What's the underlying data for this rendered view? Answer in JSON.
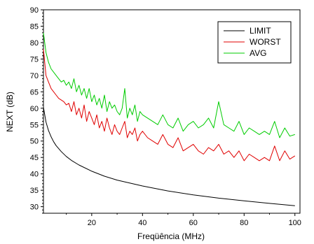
{
  "chart_data": {
    "type": "line",
    "title": "",
    "xlabel": "Freqüência (MHz)",
    "ylabel": "NEXT (dB)",
    "xlim": [
      1,
      102
    ],
    "ylim": [
      28,
      90
    ],
    "x_ticks": [
      20,
      40,
      60,
      80,
      100
    ],
    "y_ticks": [
      30,
      35,
      40,
      45,
      50,
      55,
      60,
      65,
      70,
      75,
      80,
      85,
      90
    ],
    "legend_position": "top-right",
    "grid": false,
    "series": [
      {
        "name": "LIMIT",
        "color": "#000000",
        "x": [
          1,
          2,
          3,
          4,
          5,
          6,
          8,
          10,
          12,
          15,
          20,
          25,
          30,
          40,
          50,
          60,
          70,
          80,
          90,
          100
        ],
        "values": [
          60.3,
          55.8,
          53.2,
          51.3,
          49.8,
          48.6,
          46.8,
          45.3,
          44.1,
          42.7,
          40.8,
          39.3,
          38.1,
          36.3,
          34.8,
          33.6,
          32.6,
          31.8,
          31.0,
          30.3
        ]
      },
      {
        "name": "WORST",
        "color": "#e00000",
        "x": [
          1,
          2,
          3,
          4,
          5,
          6,
          7,
          8,
          9,
          10,
          11,
          12,
          13,
          14,
          15,
          16,
          17,
          18,
          19,
          20,
          21,
          22,
          23,
          24,
          25,
          26,
          27,
          28,
          29,
          30,
          31,
          32,
          33,
          34,
          35,
          36,
          37,
          38,
          39,
          40,
          42,
          44,
          46,
          48,
          50,
          52,
          54,
          56,
          58,
          60,
          62,
          64,
          66,
          68,
          70,
          72,
          74,
          76,
          78,
          80,
          82,
          84,
          86,
          88,
          90,
          92,
          94,
          96,
          98,
          100
        ],
        "values": [
          78,
          70,
          68,
          66,
          65,
          64,
          63,
          62.5,
          62,
          61,
          61.5,
          59,
          62,
          58,
          60,
          57,
          61,
          56,
          59,
          57,
          55,
          58,
          54,
          56,
          53,
          57,
          54,
          52,
          55,
          53,
          52,
          54,
          56,
          51,
          53,
          52,
          54,
          50,
          52,
          53,
          51,
          50,
          49,
          52,
          49,
          48,
          51,
          47,
          48,
          49,
          47,
          46,
          48,
          47,
          49,
          46,
          47,
          45,
          47,
          44,
          46,
          45,
          44,
          45,
          44,
          48.5,
          44,
          47,
          44.5,
          45.5
        ]
      },
      {
        "name": "AVG",
        "color": "#00cc00",
        "x": [
          1,
          2,
          3,
          4,
          5,
          6,
          7,
          8,
          9,
          10,
          11,
          12,
          13,
          14,
          15,
          16,
          17,
          18,
          19,
          20,
          21,
          22,
          23,
          24,
          25,
          26,
          27,
          28,
          29,
          30,
          31,
          32,
          33,
          34,
          35,
          36,
          37,
          38,
          39,
          40,
          42,
          44,
          46,
          48,
          50,
          52,
          54,
          56,
          58,
          60,
          62,
          64,
          66,
          68,
          70,
          72,
          74,
          76,
          78,
          80,
          82,
          84,
          86,
          88,
          90,
          92,
          94,
          96,
          98,
          100
        ],
        "values": [
          83,
          77,
          74,
          72,
          71,
          70,
          69,
          68,
          68.5,
          67,
          68,
          66,
          69,
          65,
          67,
          64,
          66,
          63,
          66,
          62,
          64,
          61,
          63,
          60,
          64,
          59,
          62,
          60,
          61,
          59,
          58,
          60,
          66,
          57,
          60,
          58,
          61,
          56,
          59,
          58,
          57,
          56,
          55,
          58,
          55,
          54,
          57,
          53,
          55,
          56,
          54,
          55,
          57,
          54,
          62,
          55,
          54,
          53,
          56,
          52,
          54,
          53,
          52,
          53,
          52,
          56,
          51,
          54,
          51.5,
          52
        ]
      }
    ]
  }
}
